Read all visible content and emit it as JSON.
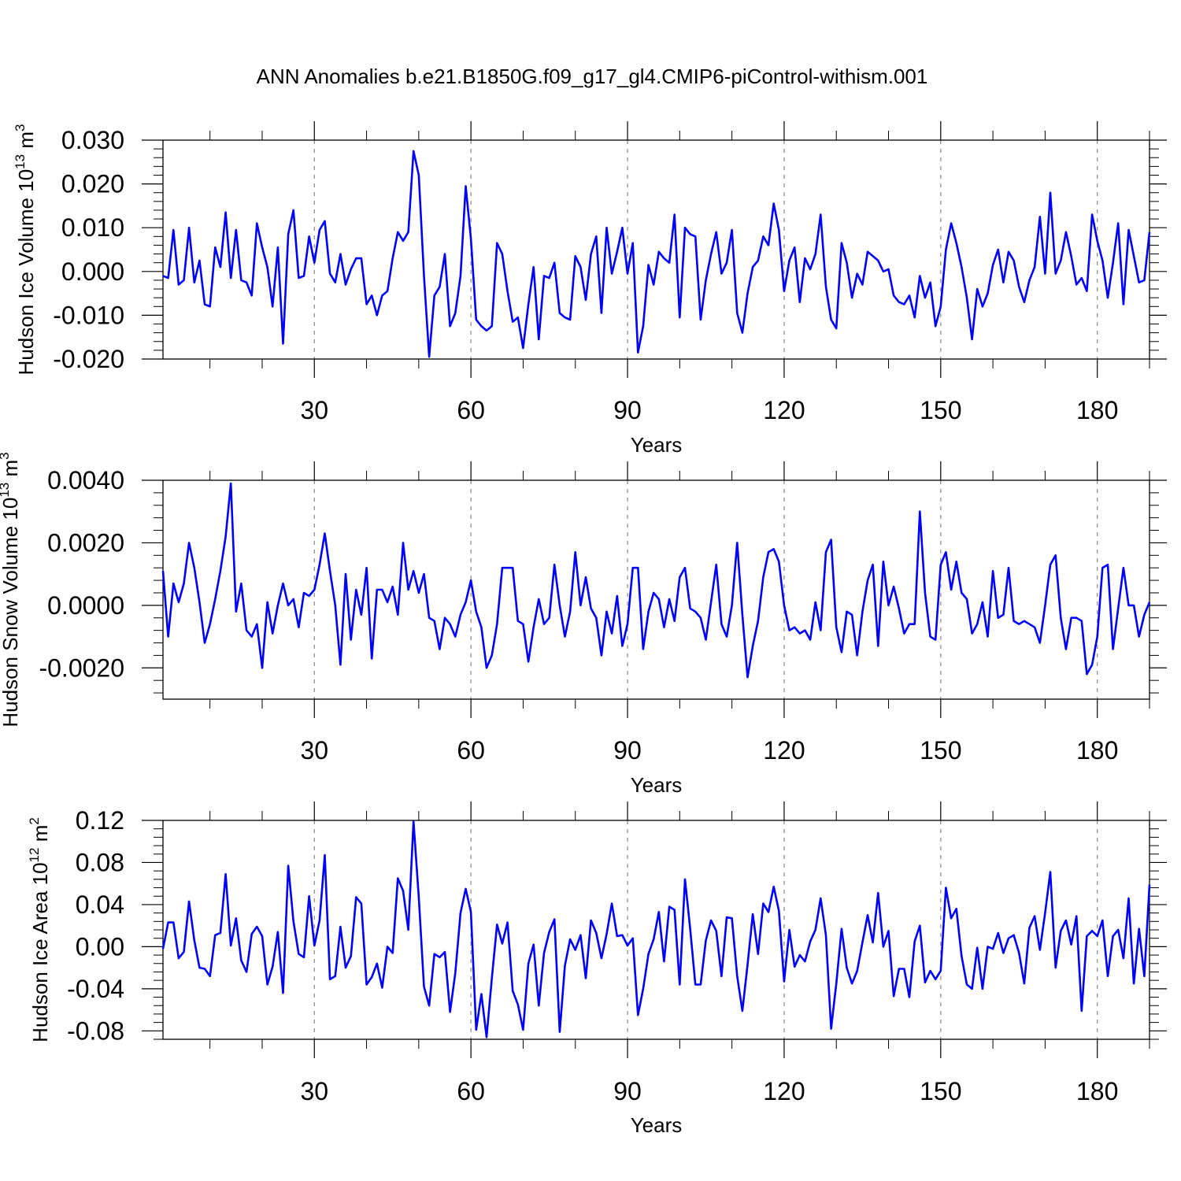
{
  "title": "ANN Anomalies b.e21.B1850G.f09_g17_gl4.CMIP6-piControl-withism.001",
  "chart_data": [
    {
      "type": "line",
      "ylabel": {
        "text": "Hudson Ice Volume 10",
        "exp": "13",
        "unit": " m",
        "unit_exp": "3"
      },
      "xlabel": "Years",
      "xlim": [
        1,
        190
      ],
      "ylim": [
        -0.02,
        0.03
      ],
      "yticks": [
        -0.02,
        -0.01,
        0.0,
        0.01,
        0.02,
        0.03
      ],
      "ytick_labels": [
        "-0.020",
        "-0.010",
        "0.000",
        "0.010",
        "0.020",
        "0.030"
      ],
      "xticks": [
        30,
        60,
        90,
        120,
        150,
        180
      ],
      "xtick_labels": [
        "30",
        "60",
        "90",
        "120",
        "150",
        "180"
      ],
      "line_color": "#0000ff",
      "series": [
        {
          "y": [
            -0.001,
            -0.0015,
            0.0095,
            -0.003,
            -0.002,
            0.01,
            -0.0025,
            0.0025,
            -0.0075,
            -0.008,
            0.0055,
            0.001,
            0.0135,
            -0.0015,
            0.0095,
            -0.002,
            -0.0025,
            -0.0055,
            0.011,
            0.0055,
            0.001,
            -0.008,
            0.0055,
            -0.0165,
            0.0085,
            0.014,
            -0.0015,
            -0.001,
            0.008,
            0.002,
            0.0095,
            0.0115,
            -0.0005,
            -0.0025,
            0.004,
            -0.003,
            0.0005,
            0.003,
            0.003,
            -0.0075,
            -0.0055,
            -0.01,
            -0.0055,
            -0.0045,
            0.003,
            0.009,
            0.007,
            0.009,
            0.0275,
            0.022,
            -0.001,
            -0.0195,
            -0.0055,
            -0.0035,
            0.004,
            -0.0125,
            -0.0095,
            -0.001,
            0.0195,
            0.0075,
            -0.011,
            -0.0125,
            -0.0135,
            -0.0125,
            0.0065,
            0.004,
            -0.0045,
            -0.0115,
            -0.0105,
            -0.0175,
            -0.0075,
            0.001,
            -0.0155,
            -0.001,
            -0.0015,
            0.002,
            -0.0095,
            -0.0105,
            -0.011,
            0.0035,
            0.001,
            -0.0065,
            0.004,
            0.008,
            -0.0095,
            0.01,
            -0.0005,
            0.0045,
            0.01,
            -0.0005,
            0.0065,
            -0.0185,
            -0.0125,
            0.0015,
            -0.003,
            0.0045,
            0.003,
            0.002,
            0.013,
            -0.0105,
            0.01,
            0.0085,
            0.008,
            -0.011,
            -0.002,
            0.004,
            0.009,
            -0.0005,
            0.002,
            0.0095,
            -0.0095,
            -0.014,
            -0.005,
            0.001,
            0.0025,
            0.008,
            0.006,
            0.0155,
            0.0095,
            -0.0045,
            0.0025,
            0.0055,
            -0.007,
            0.003,
            0.0005,
            0.004,
            0.013,
            -0.0035,
            -0.011,
            -0.013,
            0.0065,
            0.002,
            -0.006,
            -0.0005,
            -0.003,
            0.0045,
            0.0035,
            0.0025,
            0.0,
            0.0005,
            -0.0055,
            -0.007,
            -0.0075,
            -0.0055,
            -0.0105,
            -0.001,
            -0.006,
            -0.0025,
            -0.0125,
            -0.008,
            0.005,
            0.011,
            0.0065,
            0.001,
            -0.006,
            -0.0155,
            -0.004,
            -0.008,
            -0.005,
            0.0015,
            0.005,
            -0.0025,
            0.0045,
            0.0025,
            -0.0035,
            -0.007,
            -0.002,
            0.001,
            0.0125,
            -0.0005,
            0.018,
            -0.0005,
            0.0025,
            0.009,
            0.0035,
            -0.003,
            -0.0015,
            -0.0045,
            0.013,
            0.007,
            0.0025,
            -0.006,
            0.002,
            0.011,
            -0.0075,
            0.0095,
            0.0035,
            -0.0025,
            -0.002,
            0.009
          ]
        }
      ]
    },
    {
      "type": "line",
      "ylabel": {
        "text": "Hudson Snow Volume 10",
        "exp": "13",
        "unit": " m",
        "unit_exp": "3"
      },
      "xlabel": "Years",
      "xlim": [
        1,
        190
      ],
      "ylim": [
        -0.003,
        0.004
      ],
      "yticks": [
        -0.002,
        0.0,
        0.002,
        0.004
      ],
      "ytick_labels": [
        "-0.0020",
        "0.0000",
        "0.0020",
        "0.0040"
      ],
      "xticks": [
        30,
        60,
        90,
        120,
        150,
        180
      ],
      "xtick_labels": [
        "30",
        "60",
        "90",
        "120",
        "150",
        "180"
      ],
      "line_color": "#0000ff",
      "series": [
        {
          "y": [
            0.0011,
            -0.001,
            0.0007,
            0.0001,
            0.0007,
            0.002,
            0.0012,
            0.0001,
            -0.0012,
            -0.0006,
            0.0002,
            0.0011,
            0.0022,
            0.0039,
            -0.0002,
            0.0007,
            -0.0008,
            -0.001,
            -0.0006,
            -0.002,
            0.0001,
            -0.0009,
            0.0,
            0.0007,
            0.0,
            0.0002,
            -0.0007,
            0.0004,
            0.0003,
            0.0005,
            0.0013,
            0.0023,
            0.0011,
            0.0,
            -0.0019,
            0.001,
            -0.0011,
            0.0005,
            -0.0003,
            0.0012,
            -0.0017,
            0.0005,
            0.0005,
            0.0001,
            0.0006,
            -0.0003,
            0.002,
            0.0005,
            0.0011,
            0.0004,
            0.001,
            -0.0004,
            -0.0005,
            -0.0014,
            -0.0004,
            -0.0006,
            -0.001,
            -0.0003,
            0.0001,
            0.0008,
            -0.0002,
            -0.0007,
            -0.002,
            -0.0016,
            -0.0006,
            0.0012,
            0.0012,
            0.0012,
            -0.0005,
            -0.0006,
            -0.0018,
            -0.0007,
            0.0002,
            -0.0006,
            -0.0004,
            0.0013,
            0.0,
            -0.001,
            -0.0002,
            0.0017,
            0.0,
            0.0009,
            -0.0001,
            -0.0004,
            -0.0016,
            -0.0002,
            -0.0009,
            0.0003,
            -0.0013,
            -0.0006,
            0.0012,
            0.0012,
            -0.0014,
            -0.0002,
            0.0004,
            0.0002,
            -0.0007,
            0.0002,
            -0.0005,
            0.0009,
            0.0012,
            -0.0001,
            -0.0002,
            -0.0004,
            -0.0011,
            0.0001,
            0.0013,
            -0.0006,
            -0.001,
            0.0,
            0.002,
            -0.0003,
            -0.0023,
            -0.0013,
            -0.0005,
            0.0009,
            0.0017,
            0.0018,
            0.0014,
            0.0,
            -0.0008,
            -0.0007,
            -0.0009,
            -0.0008,
            -0.0011,
            0.0001,
            -0.0008,
            0.0017,
            0.0021,
            -0.0007,
            -0.0015,
            -0.0002,
            -0.0003,
            -0.0016,
            -0.0002,
            0.0008,
            0.0013,
            -0.0013,
            0.0014,
            0.0,
            0.0006,
            -0.0001,
            -0.0009,
            -0.0006,
            -0.0006,
            0.003,
            0.0004,
            -0.001,
            -0.0011,
            0.0013,
            0.0017,
            0.0005,
            0.0014,
            0.0004,
            0.0002,
            -0.0009,
            -0.0006,
            0.0001,
            -0.001,
            0.0011,
            -0.0004,
            -0.0003,
            0.0012,
            -0.0005,
            -0.0006,
            -0.0005,
            -0.0006,
            -0.0007,
            -0.0012,
            0.0,
            0.0013,
            0.0016,
            -0.0004,
            -0.0014,
            -0.0004,
            -0.0004,
            -0.0005,
            -0.0022,
            -0.0019,
            -0.001,
            0.0012,
            0.0013,
            -0.0014,
            -0.0001,
            0.0012,
            0.0,
            0.0,
            -0.001,
            -0.0003,
            0.0001
          ]
        }
      ]
    },
    {
      "type": "line",
      "ylabel": {
        "text": "Hudson Ice Area 10",
        "exp": "12",
        "unit": " m",
        "unit_exp": "2"
      },
      "xlabel": "Years",
      "xlim": [
        1,
        190
      ],
      "ylim": [
        -0.088,
        0.12
      ],
      "yticks": [
        -0.08,
        -0.04,
        0.0,
        0.04,
        0.08,
        0.12
      ],
      "ytick_labels": [
        "-0.08",
        "-0.04",
        "0.00",
        "0.04",
        "0.08",
        "0.12"
      ],
      "xticks": [
        30,
        60,
        90,
        120,
        150,
        180
      ],
      "xtick_labels": [
        "30",
        "60",
        "90",
        "120",
        "150",
        "180"
      ],
      "line_color": "#0000ff",
      "series": [
        {
          "y": [
            -0.002,
            0.023,
            0.023,
            -0.011,
            -0.005,
            0.043,
            0.006,
            -0.02,
            -0.021,
            -0.028,
            0.011,
            0.013,
            0.069,
            0.001,
            0.027,
            -0.013,
            -0.024,
            0.012,
            0.019,
            0.01,
            -0.036,
            -0.019,
            0.014,
            -0.044,
            0.077,
            0.024,
            -0.007,
            -0.01,
            0.048,
            0.001,
            0.025,
            0.087,
            -0.031,
            -0.028,
            0.019,
            -0.02,
            -0.009,
            0.047,
            0.041,
            -0.036,
            -0.029,
            -0.016,
            -0.039,
            0.0,
            -0.006,
            0.065,
            0.053,
            0.016,
            0.119,
            0.047,
            -0.038,
            -0.056,
            -0.007,
            -0.01,
            -0.005,
            -0.062,
            -0.025,
            0.032,
            0.055,
            0.033,
            -0.079,
            -0.045,
            -0.086,
            -0.03,
            0.021,
            0.003,
            0.023,
            -0.042,
            -0.055,
            -0.079,
            -0.016,
            0.002,
            -0.056,
            -0.006,
            0.014,
            0.026,
            -0.081,
            -0.018,
            0.007,
            -0.003,
            0.011,
            -0.03,
            0.025,
            0.013,
            -0.011,
            0.012,
            0.041,
            0.01,
            0.011,
            0.001,
            0.008,
            -0.065,
            -0.04,
            -0.007,
            0.007,
            0.033,
            -0.014,
            0.038,
            0.035,
            -0.036,
            0.064,
            0.017,
            -0.036,
            -0.036,
            0.006,
            0.025,
            0.015,
            -0.028,
            0.028,
            0.027,
            -0.028,
            -0.061,
            -0.017,
            0.031,
            -0.007,
            0.041,
            0.033,
            0.057,
            0.034,
            -0.033,
            0.016,
            -0.019,
            -0.008,
            -0.014,
            0.005,
            0.016,
            0.046,
            0.011,
            -0.078,
            -0.035,
            0.017,
            -0.02,
            -0.035,
            -0.023,
            0.004,
            0.03,
            0.004,
            0.051,
            0.0,
            0.015,
            -0.047,
            -0.021,
            -0.021,
            -0.048,
            0.005,
            0.02,
            -0.034,
            -0.023,
            -0.031,
            -0.023,
            0.056,
            0.027,
            0.036,
            -0.009,
            -0.036,
            -0.04,
            -0.001,
            -0.04,
            0.0,
            -0.002,
            0.013,
            -0.006,
            0.008,
            0.011,
            -0.006,
            -0.035,
            0.018,
            0.029,
            -0.003,
            0.032,
            0.071,
            -0.02,
            0.015,
            0.025,
            0.002,
            0.029,
            -0.061,
            0.01,
            0.015,
            0.01,
            0.025,
            -0.028,
            0.01,
            0.016,
            -0.011,
            0.046,
            -0.035,
            0.017,
            -0.028,
            0.059
          ]
        }
      ]
    }
  ]
}
